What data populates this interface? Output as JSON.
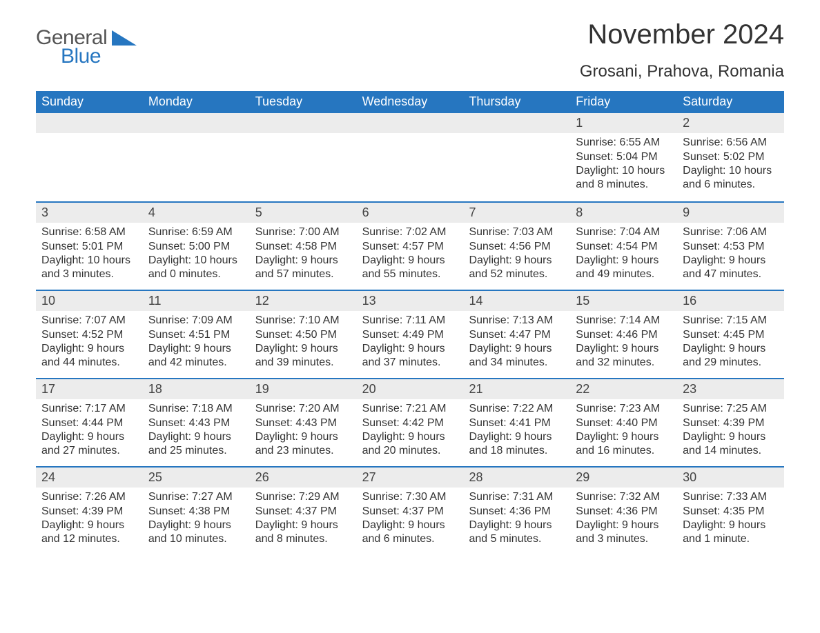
{
  "brand": {
    "word1": "General",
    "word2": "Blue",
    "word1_color": "#555555",
    "word2_color": "#2676c0",
    "shape_color": "#2676c0"
  },
  "header": {
    "month_title": "November 2024",
    "location": "Grosani, Prahova, Romania"
  },
  "calendar": {
    "type": "table",
    "columns": [
      "Sunday",
      "Monday",
      "Tuesday",
      "Wednesday",
      "Thursday",
      "Friday",
      "Saturday"
    ],
    "header_bg": "#2676c0",
    "header_text_color": "#ffffff",
    "week_divider_color": "#2676c0",
    "daynum_strip_bg": "#ececec",
    "body_text_color": "#333333",
    "background_color": "#ffffff",
    "header_fontsize": 18,
    "body_fontsize": 16,
    "daynum_fontsize": 18,
    "weeks": [
      [
        null,
        null,
        null,
        null,
        null,
        {
          "n": "1",
          "sunrise": "Sunrise: 6:55 AM",
          "sunset": "Sunset: 5:04 PM",
          "daylight": "Daylight: 10 hours and 8 minutes."
        },
        {
          "n": "2",
          "sunrise": "Sunrise: 6:56 AM",
          "sunset": "Sunset: 5:02 PM",
          "daylight": "Daylight: 10 hours and 6 minutes."
        }
      ],
      [
        {
          "n": "3",
          "sunrise": "Sunrise: 6:58 AM",
          "sunset": "Sunset: 5:01 PM",
          "daylight": "Daylight: 10 hours and 3 minutes."
        },
        {
          "n": "4",
          "sunrise": "Sunrise: 6:59 AM",
          "sunset": "Sunset: 5:00 PM",
          "daylight": "Daylight: 10 hours and 0 minutes."
        },
        {
          "n": "5",
          "sunrise": "Sunrise: 7:00 AM",
          "sunset": "Sunset: 4:58 PM",
          "daylight": "Daylight: 9 hours and 57 minutes."
        },
        {
          "n": "6",
          "sunrise": "Sunrise: 7:02 AM",
          "sunset": "Sunset: 4:57 PM",
          "daylight": "Daylight: 9 hours and 55 minutes."
        },
        {
          "n": "7",
          "sunrise": "Sunrise: 7:03 AM",
          "sunset": "Sunset: 4:56 PM",
          "daylight": "Daylight: 9 hours and 52 minutes."
        },
        {
          "n": "8",
          "sunrise": "Sunrise: 7:04 AM",
          "sunset": "Sunset: 4:54 PM",
          "daylight": "Daylight: 9 hours and 49 minutes."
        },
        {
          "n": "9",
          "sunrise": "Sunrise: 7:06 AM",
          "sunset": "Sunset: 4:53 PM",
          "daylight": "Daylight: 9 hours and 47 minutes."
        }
      ],
      [
        {
          "n": "10",
          "sunrise": "Sunrise: 7:07 AM",
          "sunset": "Sunset: 4:52 PM",
          "daylight": "Daylight: 9 hours and 44 minutes."
        },
        {
          "n": "11",
          "sunrise": "Sunrise: 7:09 AM",
          "sunset": "Sunset: 4:51 PM",
          "daylight": "Daylight: 9 hours and 42 minutes."
        },
        {
          "n": "12",
          "sunrise": "Sunrise: 7:10 AM",
          "sunset": "Sunset: 4:50 PM",
          "daylight": "Daylight: 9 hours and 39 minutes."
        },
        {
          "n": "13",
          "sunrise": "Sunrise: 7:11 AM",
          "sunset": "Sunset: 4:49 PM",
          "daylight": "Daylight: 9 hours and 37 minutes."
        },
        {
          "n": "14",
          "sunrise": "Sunrise: 7:13 AM",
          "sunset": "Sunset: 4:47 PM",
          "daylight": "Daylight: 9 hours and 34 minutes."
        },
        {
          "n": "15",
          "sunrise": "Sunrise: 7:14 AM",
          "sunset": "Sunset: 4:46 PM",
          "daylight": "Daylight: 9 hours and 32 minutes."
        },
        {
          "n": "16",
          "sunrise": "Sunrise: 7:15 AM",
          "sunset": "Sunset: 4:45 PM",
          "daylight": "Daylight: 9 hours and 29 minutes."
        }
      ],
      [
        {
          "n": "17",
          "sunrise": "Sunrise: 7:17 AM",
          "sunset": "Sunset: 4:44 PM",
          "daylight": "Daylight: 9 hours and 27 minutes."
        },
        {
          "n": "18",
          "sunrise": "Sunrise: 7:18 AM",
          "sunset": "Sunset: 4:43 PM",
          "daylight": "Daylight: 9 hours and 25 minutes."
        },
        {
          "n": "19",
          "sunrise": "Sunrise: 7:20 AM",
          "sunset": "Sunset: 4:43 PM",
          "daylight": "Daylight: 9 hours and 23 minutes."
        },
        {
          "n": "20",
          "sunrise": "Sunrise: 7:21 AM",
          "sunset": "Sunset: 4:42 PM",
          "daylight": "Daylight: 9 hours and 20 minutes."
        },
        {
          "n": "21",
          "sunrise": "Sunrise: 7:22 AM",
          "sunset": "Sunset: 4:41 PM",
          "daylight": "Daylight: 9 hours and 18 minutes."
        },
        {
          "n": "22",
          "sunrise": "Sunrise: 7:23 AM",
          "sunset": "Sunset: 4:40 PM",
          "daylight": "Daylight: 9 hours and 16 minutes."
        },
        {
          "n": "23",
          "sunrise": "Sunrise: 7:25 AM",
          "sunset": "Sunset: 4:39 PM",
          "daylight": "Daylight: 9 hours and 14 minutes."
        }
      ],
      [
        {
          "n": "24",
          "sunrise": "Sunrise: 7:26 AM",
          "sunset": "Sunset: 4:39 PM",
          "daylight": "Daylight: 9 hours and 12 minutes."
        },
        {
          "n": "25",
          "sunrise": "Sunrise: 7:27 AM",
          "sunset": "Sunset: 4:38 PM",
          "daylight": "Daylight: 9 hours and 10 minutes."
        },
        {
          "n": "26",
          "sunrise": "Sunrise: 7:29 AM",
          "sunset": "Sunset: 4:37 PM",
          "daylight": "Daylight: 9 hours and 8 minutes."
        },
        {
          "n": "27",
          "sunrise": "Sunrise: 7:30 AM",
          "sunset": "Sunset: 4:37 PM",
          "daylight": "Daylight: 9 hours and 6 minutes."
        },
        {
          "n": "28",
          "sunrise": "Sunrise: 7:31 AM",
          "sunset": "Sunset: 4:36 PM",
          "daylight": "Daylight: 9 hours and 5 minutes."
        },
        {
          "n": "29",
          "sunrise": "Sunrise: 7:32 AM",
          "sunset": "Sunset: 4:36 PM",
          "daylight": "Daylight: 9 hours and 3 minutes."
        },
        {
          "n": "30",
          "sunrise": "Sunrise: 7:33 AM",
          "sunset": "Sunset: 4:35 PM",
          "daylight": "Daylight: 9 hours and 1 minute."
        }
      ]
    ]
  }
}
